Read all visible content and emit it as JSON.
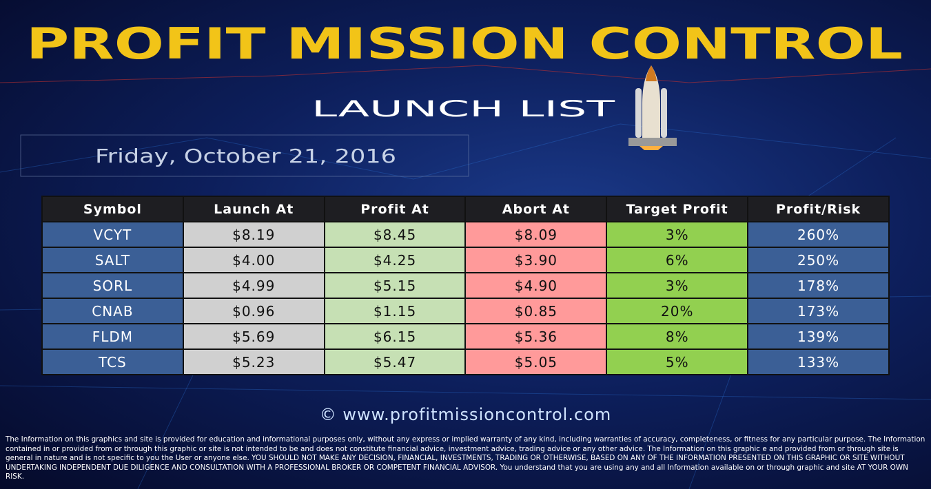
{
  "header": {
    "title": "PROFIT MISSION CONTROL",
    "subtitle": "LAUNCH LIST",
    "date": "Friday, October 21, 2016"
  },
  "table": {
    "columns": [
      "Symbol",
      "Launch At",
      "Profit At",
      "Abort At",
      "Target Profit",
      "Profit/Risk"
    ],
    "rows": [
      [
        "VCYT",
        "$8.19",
        "$8.45",
        "$8.09",
        "3%",
        "260%"
      ],
      [
        "SALT",
        "$4.00",
        "$4.25",
        "$3.90",
        "6%",
        "250%"
      ],
      [
        "SORL",
        "$4.99",
        "$5.15",
        "$4.90",
        "3%",
        "178%"
      ],
      [
        "CNAB",
        "$0.96",
        "$1.15",
        "$0.85",
        "20%",
        "173%"
      ],
      [
        "FLDM",
        "$5.69",
        "$6.15",
        "$5.36",
        "8%",
        "139%"
      ],
      [
        "TCS",
        "$5.23",
        "$5.47",
        "$5.05",
        "5%",
        "133%"
      ]
    ]
  },
  "footer": {
    "website": "© www.profitmissioncontrol.com",
    "disclaimer": "The Information on this graphics and site is provided for education and informational purposes only, without any express or implied warranty of any kind, including warranties of accuracy, completeness, or fitness for any particular purpose. The Information contained in or provided from or through this graphic or site is not intended to be and does not constitute financial advice, investment advice, trading advice or any other advice. The Information on this graphic e  and provided from or through site is general in nature and is not specific to you the User or anyone else. YOU SHOULD NOT MAKE ANY DECISION, FINANCIAL, INVESTMENTS, TRADING OR OTHERWISE, BASED ON ANY OF THE INFORMATION PRESENTED ON THIS GRAPHIC OR SITE WITHOUT UNDERTAKING INDEPENDENT DUE DILIGENCE AND CONSULTATION WITH A PROFESSIONAL BROKER OR COMPETENT FINANCIAL ADVISOR. You understand that you are using any and all Information available on or through graphic and site AT YOUR OWN RISK."
  }
}
